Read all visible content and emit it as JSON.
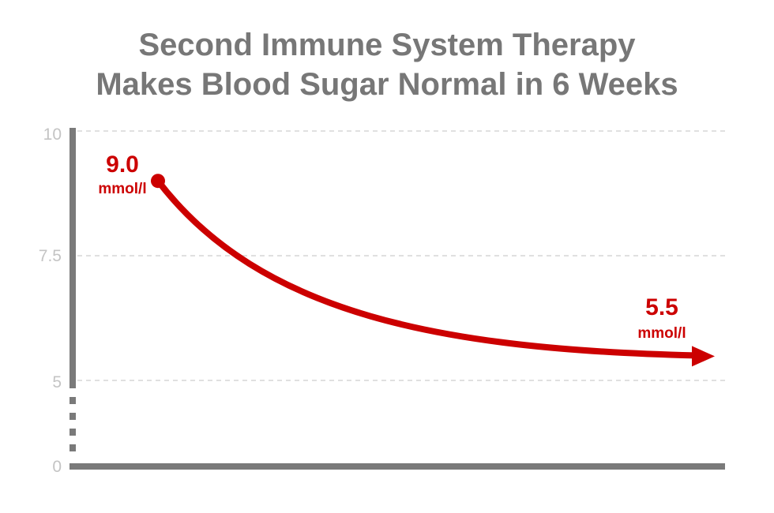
{
  "chart_data": {
    "type": "line",
    "title": [
      "Second Immune System Therapy",
      "Makes Blood Sugar Normal in 6 Weeks"
    ],
    "xlabel": "",
    "ylabel": "",
    "y_ticks": [
      "10",
      "7.5",
      "5",
      "0"
    ],
    "ylim": [
      0,
      10
    ],
    "axis_break": "between 0 and 5",
    "grid": true,
    "series": [
      {
        "color": "#cc0000",
        "start": {
          "y": 9.0,
          "label": "9.0",
          "unit": "mmol/l"
        },
        "end": {
          "y": 5.5,
          "label": "5.5",
          "unit": "mmol/l"
        }
      }
    ],
    "colors": {
      "title": "#777777",
      "axis": "#7a7a7a",
      "grid": "#d6d6d6",
      "tick": "#c4c4c4",
      "series": "#cc0000"
    }
  }
}
